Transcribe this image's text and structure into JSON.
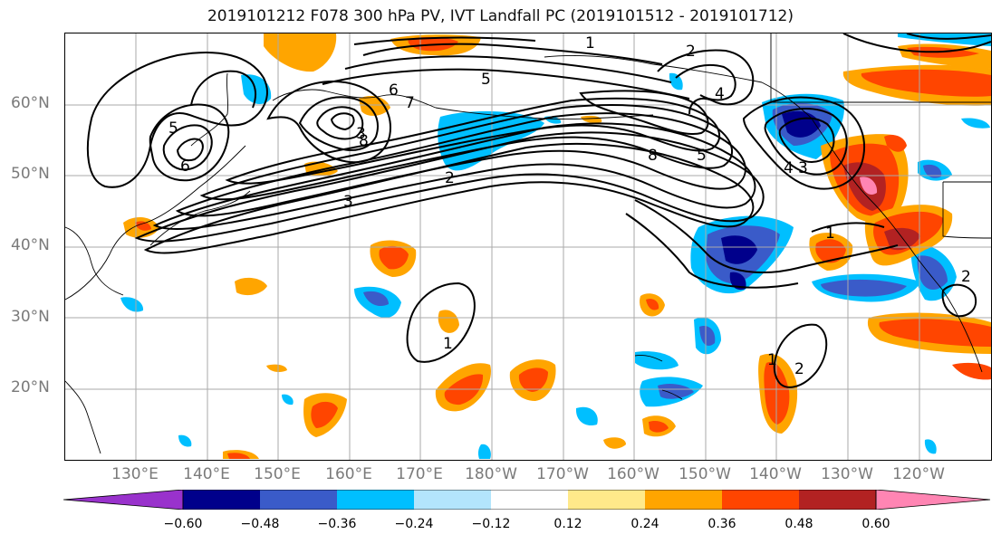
{
  "title": "2019101212 F078 300 hPa PV, IVT Landfall PC (2019101512 - 2019101712)",
  "map": {
    "lat_labels": [
      "60°N",
      "50°N",
      "40°N",
      "30°N",
      "20°N"
    ],
    "lon_labels": [
      "130°E",
      "140°E",
      "150°E",
      "160°E",
      "170°E",
      "180°W",
      "170°W",
      "160°W",
      "150°W",
      "140°W",
      "130°W",
      "120°W"
    ],
    "contour_labels": [
      "2",
      "4",
      "5",
      "3",
      "8",
      "5",
      "6",
      "7",
      "8",
      "5",
      "4",
      "3",
      "2",
      "1",
      "1",
      "2",
      "1",
      "2",
      "1",
      "3",
      "6"
    ]
  },
  "colorbar": {
    "ticks": [
      "−0.60",
      "−0.48",
      "−0.36",
      "−0.24",
      "−0.12",
      "0.12",
      "0.24",
      "0.36",
      "0.48",
      "0.60"
    ],
    "colors": [
      "#9932CC",
      "#00008B",
      "#3A5BC9",
      "#00BFFF",
      "#B3E5FC",
      "#FFFFFF",
      "#FFE98A",
      "#FFA500",
      "#FF4500",
      "#B22222",
      "#FF85B3"
    ]
  }
}
